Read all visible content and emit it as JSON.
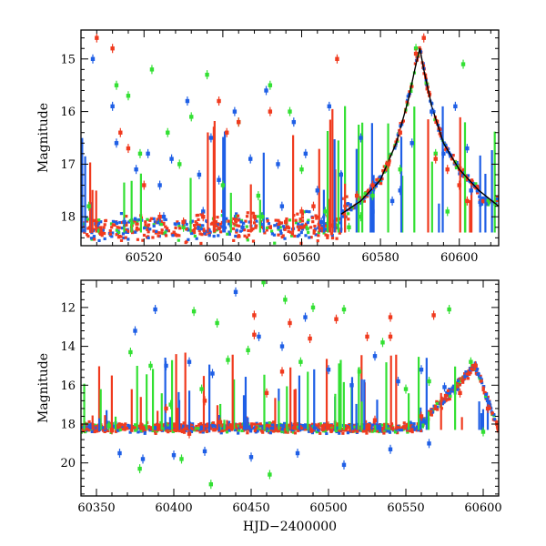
{
  "chart_data": [
    {
      "type": "scatter",
      "panel": "top",
      "title": "",
      "xlabel": "",
      "ylabel": "Magnitude",
      "xlim": [
        60504,
        60610
      ],
      "ylim": [
        18.55,
        14.45
      ],
      "y_inverted": true,
      "xticks": [
        60520,
        60540,
        60560,
        60580,
        60600
      ],
      "xtick_labels": [
        "60520",
        "60540",
        "60560",
        "60580",
        "60600"
      ],
      "yticks": [
        15,
        16,
        17,
        18
      ],
      "ytick_labels": [
        "15",
        "16",
        "17",
        "18"
      ],
      "grid": false,
      "legend": "none",
      "series": [
        {
          "color": "#1f5fe6",
          "points": [
            [
              60507,
              15.0
            ],
            [
              60512,
              15.9
            ],
            [
              60513,
              16.6
            ],
            [
              60518,
              17.1
            ],
            [
              60521,
              16.8
            ],
            [
              60524,
              17.4
            ],
            [
              60527,
              16.9
            ],
            [
              60531,
              15.8
            ],
            [
              60534,
              17.2
            ],
            [
              60537,
              16.5
            ],
            [
              60539,
              17.3
            ],
            [
              60543,
              16.0
            ],
            [
              60547,
              16.9
            ],
            [
              60551,
              15.6
            ],
            [
              60554,
              17.0
            ],
            [
              60558,
              16.2
            ],
            [
              60561,
              16.8
            ],
            [
              60564,
              17.5
            ],
            [
              60567,
              15.9
            ],
            [
              60570,
              17.2
            ],
            [
              60575,
              16.5
            ],
            [
              60578,
              17.9
            ],
            [
              60583,
              17.7
            ],
            [
              60588,
              16.6
            ],
            [
              60593,
              16.0
            ],
            [
              60596,
              16.8
            ],
            [
              60599,
              15.9
            ],
            [
              60602,
              16.7
            ],
            [
              60603,
              17.5
            ],
            [
              60515,
              18.1
            ],
            [
              60525,
              18.0
            ],
            [
              60535,
              17.9
            ],
            [
              60545,
              18.2
            ],
            [
              60555,
              17.8
            ],
            [
              60565,
              18.1
            ],
            [
              60585,
              17.5
            ]
          ]
        },
        {
          "color": "#33e033",
          "points": [
            [
              60506,
              17.8
            ],
            [
              60513,
              15.5
            ],
            [
              60516,
              15.7
            ],
            [
              60519,
              16.8
            ],
            [
              60522,
              15.2
            ],
            [
              60526,
              16.4
            ],
            [
              60529,
              17.0
            ],
            [
              60532,
              16.1
            ],
            [
              60536,
              15.3
            ],
            [
              60540,
              17.4
            ],
            [
              60544,
              16.2
            ],
            [
              60549,
              17.6
            ],
            [
              60552,
              15.5
            ],
            [
              60557,
              16.0
            ],
            [
              60560,
              17.1
            ],
            [
              60566,
              17.9
            ],
            [
              60572,
              18.2
            ],
            [
              60578,
              17.6
            ],
            [
              60585,
              17.1
            ],
            [
              60589,
              14.8
            ],
            [
              60594,
              16.8
            ],
            [
              60597,
              17.9
            ],
            [
              60601,
              15.1
            ],
            [
              60530,
              18.2
            ],
            [
              60550,
              18.0
            ],
            [
              60575,
              18.0
            ]
          ]
        },
        {
          "color": "#f03a1e",
          "points": [
            [
              60508,
              14.6
            ],
            [
              60512,
              14.8
            ],
            [
              60514,
              16.4
            ],
            [
              60516,
              16.7
            ],
            [
              60520,
              17.4
            ],
            [
              60524,
              18.0
            ],
            [
              60530,
              18.1
            ],
            [
              60535,
              18.0
            ],
            [
              60539,
              15.8
            ],
            [
              60541,
              16.4
            ],
            [
              60544,
              16.2
            ],
            [
              60548,
              18.0
            ],
            [
              60552,
              16.0
            ],
            [
              60556,
              18.1
            ],
            [
              60560,
              17.9
            ],
            [
              60563,
              17.8
            ],
            [
              60569,
              15.0
            ],
            [
              60574,
              17.6
            ],
            [
              60578,
              17.4
            ],
            [
              60582,
              17.0
            ],
            [
              60585,
              16.4
            ],
            [
              60589,
              14.9
            ],
            [
              60591,
              14.6
            ],
            [
              60594,
              16.9
            ],
            [
              60597,
              17.1
            ],
            [
              60600,
              17.4
            ],
            [
              60602,
              17.7
            ]
          ]
        }
      ],
      "model_curve": {
        "color": "#000000",
        "points": [
          [
            60570,
            17.95
          ],
          [
            60575,
            17.7
          ],
          [
            60580,
            17.3
          ],
          [
            60584,
            16.6
          ],
          [
            60587,
            15.8
          ],
          [
            60589,
            15.1
          ],
          [
            60590,
            14.8
          ],
          [
            60591,
            15.2
          ],
          [
            60593,
            15.9
          ],
          [
            60596,
            16.6
          ],
          [
            60600,
            17.1
          ],
          [
            60605,
            17.5
          ],
          [
            60610,
            17.8
          ]
        ]
      }
    },
    {
      "type": "scatter",
      "panel": "bottom",
      "title": "",
      "xlabel": "HJD−2400000",
      "ylabel": "Magnitude",
      "xlim": [
        60340,
        60610
      ],
      "ylim": [
        21.7,
        10.6
      ],
      "y_inverted": true,
      "xticks": [
        60350,
        60400,
        60450,
        60500,
        60550,
        60600
      ],
      "xtick_labels": [
        "60350",
        "60400",
        "60450",
        "60500",
        "60550",
        "60600"
      ],
      "yticks": [
        12,
        14,
        16,
        18,
        20
      ],
      "ytick_labels": [
        "12",
        "14",
        "16",
        "18",
        "20"
      ],
      "grid": false,
      "legend": "none",
      "series": [
        {
          "color": "#1f5fe6",
          "points": [
            [
              60375,
              13.2
            ],
            [
              60388,
              12.1
            ],
            [
              60395,
              15.0
            ],
            [
              60410,
              14.8
            ],
            [
              60425,
              15.4
            ],
            [
              60440,
              11.2
            ],
            [
              60455,
              13.5
            ],
            [
              60470,
              14.0
            ],
            [
              60485,
              12.5
            ],
            [
              60500,
              15.2
            ],
            [
              60515,
              16.0
            ],
            [
              60530,
              14.5
            ],
            [
              60545,
              15.8
            ],
            [
              60560,
              15.2
            ],
            [
              60575,
              16.1
            ],
            [
              60595,
              15.0
            ],
            [
              60365,
              19.5
            ],
            [
              60380,
              19.8
            ],
            [
              60400,
              19.6
            ],
            [
              60420,
              19.4
            ],
            [
              60450,
              19.7
            ],
            [
              60480,
              19.5
            ],
            [
              60510,
              20.1
            ],
            [
              60540,
              19.3
            ],
            [
              60565,
              19.0
            ]
          ]
        },
        {
          "color": "#33e033",
          "points": [
            [
              60372,
              14.3
            ],
            [
              60378,
              20.3
            ],
            [
              60385,
              15.0
            ],
            [
              60398,
              17.0
            ],
            [
              60405,
              19.8
            ],
            [
              60413,
              12.2
            ],
            [
              60418,
              16.2
            ],
            [
              60424,
              21.1
            ],
            [
              60428,
              12.8
            ],
            [
              60435,
              14.7
            ],
            [
              60448,
              14.2
            ],
            [
              60458,
              10.7
            ],
            [
              60462,
              20.6
            ],
            [
              60472,
              11.6
            ],
            [
              60482,
              14.8
            ],
            [
              60490,
              12.0
            ],
            [
              60510,
              12.1
            ],
            [
              60520,
              15.3
            ],
            [
              60535,
              13.8
            ],
            [
              60550,
              16.2
            ],
            [
              60565,
              15.8
            ],
            [
              60578,
              12.1
            ],
            [
              60592,
              14.8
            ],
            [
              60358,
              18.1
            ],
            [
              60600,
              18.4
            ]
          ]
        },
        {
          "color": "#f03a1e",
          "points": [
            [
              60452,
              12.4
            ],
            [
              60452,
              13.4
            ],
            [
              60475,
              12.8
            ],
            [
              60488,
              13.6
            ],
            [
              60505,
              12.6
            ],
            [
              60525,
              13.5
            ],
            [
              60540,
              12.5
            ],
            [
              60540,
              13.5
            ],
            [
              60568,
              12.4
            ],
            [
              60460,
              16.4
            ],
            [
              60470,
              15.3
            ],
            [
              60420,
              16.8
            ],
            [
              60395,
              17.2
            ],
            [
              60360,
              18.3
            ],
            [
              60380,
              18.2
            ],
            [
              60410,
              18.5
            ],
            [
              60430,
              17.9
            ],
            [
              60500,
              18.1
            ],
            [
              60530,
              17.8
            ],
            [
              60560,
              17.6
            ],
            [
              60585,
              16.4
            ],
            [
              60595,
              15.0
            ],
            [
              60603,
              17.2
            ]
          ]
        }
      ]
    }
  ]
}
